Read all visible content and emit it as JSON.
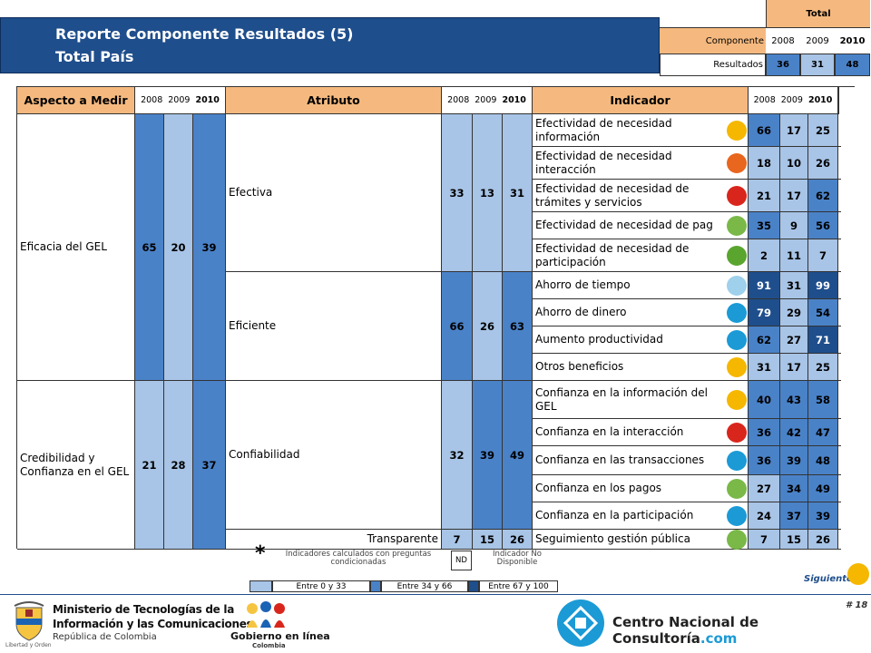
{
  "header": {
    "title": "Reporte Componente Resultados (5)",
    "subtitle": "Total País"
  },
  "summary": {
    "total_label": "Total",
    "componente_label": "Componente",
    "years": [
      "2008",
      "2009",
      "2010"
    ],
    "resultados_label": "Resultados",
    "values": [
      "36",
      "31",
      "48"
    ]
  },
  "table": {
    "headers": {
      "aspecto": "Aspecto a Medir",
      "atributo": "Atributo",
      "indicador": "Indicador"
    },
    "years": [
      "2008",
      "2009",
      "2010"
    ],
    "aspectos": [
      {
        "label": "Eficacia del GEL",
        "values": [
          "65",
          "20",
          "39"
        ]
      },
      {
        "label": "Credibilidad y Confianza en el GEL",
        "values": [
          "21",
          "28",
          "37"
        ]
      }
    ],
    "atributos": [
      {
        "label": "Efectiva",
        "values": [
          "33",
          "13",
          "31"
        ]
      },
      {
        "label": "Eficiente",
        "values": [
          "66",
          "26",
          "63"
        ]
      },
      {
        "label": "Confiabilidad",
        "values": [
          "32",
          "39",
          "49"
        ]
      },
      {
        "label": "Transparente",
        "values": [
          "7",
          "15",
          "26"
        ]
      }
    ],
    "indicadores": [
      {
        "label": "Efectividad de necesidad información",
        "values": [
          "66",
          "17",
          "25"
        ],
        "marker": "#f5b700"
      },
      {
        "label": "Efectividad de necesidad interacción",
        "values": [
          "18",
          "10",
          "26"
        ],
        "marker": "#e8661e"
      },
      {
        "label": "Efectividad de necesidad de trámites y servicios",
        "values": [
          "21",
          "17",
          "62"
        ],
        "marker": "#d9261c"
      },
      {
        "label": "Efectividad de necesidad de pag",
        "values": [
          "35",
          "9",
          "56"
        ],
        "marker": "#7ab848"
      },
      {
        "label": "Efectividad de necesidad de participación",
        "values": [
          "2",
          "11",
          "7"
        ],
        "marker": "#5aa52e"
      },
      {
        "label": "Ahorro de tiempo",
        "values": [
          "91",
          "31",
          "99"
        ],
        "marker": "#9fd0ec"
      },
      {
        "label": "Ahorro de dinero",
        "values": [
          "79",
          "29",
          "54"
        ],
        "marker": "#1b9ad6"
      },
      {
        "label": "Aumento productividad",
        "values": [
          "62",
          "27",
          "71"
        ],
        "marker": "#1b9ad6"
      },
      {
        "label": "Otros beneficios",
        "values": [
          "31",
          "17",
          "25"
        ],
        "marker": "#f5b700"
      },
      {
        "label": "Confianza en la información del GEL",
        "values": [
          "40",
          "43",
          "58"
        ],
        "marker": "#f5b700"
      },
      {
        "label": "Confianza en la interacción",
        "values": [
          "36",
          "42",
          "47"
        ],
        "marker": "#d9261c"
      },
      {
        "label": "Confianza en las transacciones",
        "values": [
          "36",
          "39",
          "48"
        ],
        "marker": "#1b9ad6"
      },
      {
        "label": "Confianza en los pagos",
        "values": [
          "27",
          "34",
          "49"
        ],
        "marker": "#7ab848"
      },
      {
        "label": "Confianza en la participación",
        "values": [
          "24",
          "37",
          "39"
        ],
        "marker": "#1b9ad6"
      },
      {
        "label": "Seguimiento gestión pública",
        "values": [
          "7",
          "15",
          "26"
        ],
        "marker": "#7ab848"
      }
    ]
  },
  "notes": {
    "asterisk": "*",
    "condicionadas": "Indicadores calculados con preguntas condicionadas",
    "nd": "ND",
    "nd_text": "Indicador No Disponible"
  },
  "legend": [
    "Entre 0 y 33",
    "Entre 34 y 66",
    "Entre 67 y 100"
  ],
  "colors": {
    "low": "#a8c4e6",
    "mid": "#4a82c8",
    "high": "#1f4e8c",
    "header": "#f5b97f",
    "title_bar": "#1f4e8c"
  },
  "nav": {
    "siguiente": "Siguiente",
    "page": "# 18"
  },
  "footer": {
    "ministerio_line1": "Ministerio de Tecnologías de la",
    "ministerio_line2": "Información y las Comunicaciones",
    "ministerio_line3": "República de Colombia",
    "shield_caption": "Libertad y Orden",
    "gobierno_line1": "Gobierno en línea",
    "gobierno_line2": "Colombia",
    "cnc": "Centro Nacional de Consultoría",
    "cnc_suffix": ".com"
  }
}
